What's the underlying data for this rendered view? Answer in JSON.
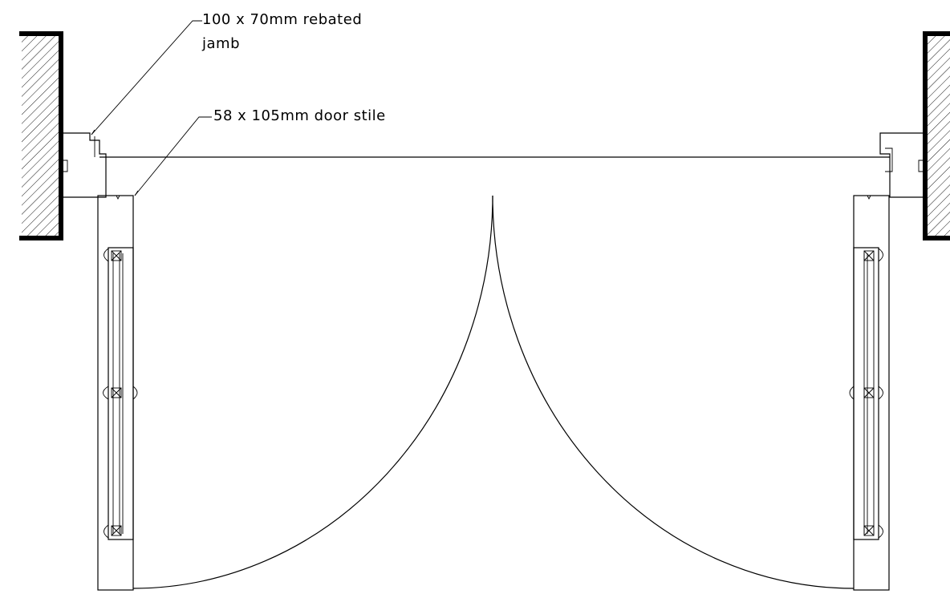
{
  "annotations": {
    "jamb": {
      "line1": "100 x 70mm rebated",
      "line2": "jamb"
    },
    "stile": {
      "text": "58 x 105mm door stile"
    }
  },
  "colors": {
    "line": "#000000",
    "background": "#ffffff"
  }
}
